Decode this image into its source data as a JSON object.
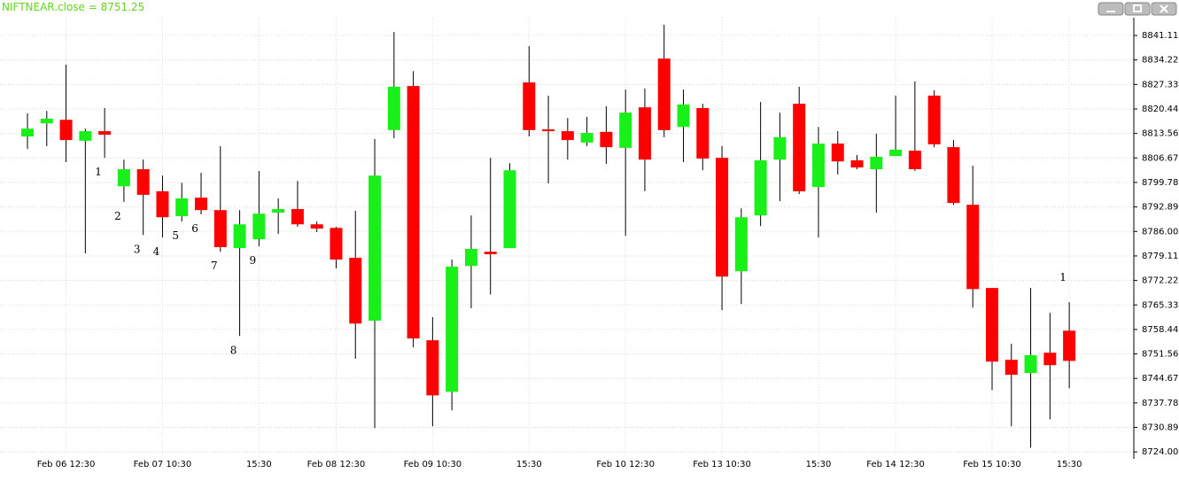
{
  "chart_data": {
    "type": "candlestick",
    "title": "NIFTNEAR.close = 8751.25",
    "categories": [
      null,
      null,
      "Feb 06 12:30",
      null,
      null,
      null,
      null,
      "Feb 07 10:30",
      null,
      null,
      null,
      null,
      "15:30",
      null,
      null,
      null,
      "Feb 08 12:30",
      null,
      null,
      null,
      null,
      "Feb 09 10:30",
      null,
      null,
      null,
      null,
      "15:30",
      null,
      null,
      null,
      null,
      "Feb 10 12:30",
      null,
      null,
      null,
      null,
      "Feb 13 10:30",
      null,
      null,
      null,
      null,
      "15:30",
      null,
      null,
      null,
      "Feb 14 12:30",
      null,
      null,
      null,
      null,
      "Feb 15 10:30",
      null,
      null,
      null,
      "15:30"
    ],
    "open": [
      8812.7,
      8816.4,
      8817.4,
      8811.5,
      8814.2,
      8798.7,
      8803.5,
      8797.3,
      8790.3,
      8795.5,
      8792.0,
      8781.3,
      8783.8,
      8791.3,
      8792.3,
      8788.0,
      8787.0,
      8778.6,
      8760.9,
      8814.5,
      8826.9,
      8755.4,
      8740.9,
      8776.3,
      8780.3,
      8781.3,
      8827.9,
      8814.7,
      8814.2,
      8811.0,
      8814.0,
      8809.5,
      8820.9,
      8834.6,
      8815.4,
      8820.7,
      8806.7,
      8774.8,
      8790.5,
      8806.2,
      8821.9,
      8798.5,
      8810.7,
      8806.0,
      8803.5,
      8807.2,
      8808.7,
      8824.2,
      8809.7,
      8793.5,
      8770.1,
      8749.9,
      8746.2,
      8751.9,
      8758.1
    ],
    "high": [
      8819.2,
      8819.9,
      8832.9,
      8814.9,
      8820.7,
      8806.2,
      8806.2,
      8801.7,
      8799.7,
      8802.5,
      8810.0,
      8792.0,
      8803.0,
      8795.3,
      8800.2,
      8788.8,
      8787.3,
      8791.8,
      8812.0,
      8842.1,
      8831.1,
      8761.9,
      8778.1,
      8790.5,
      8806.7,
      8805.2,
      8838.1,
      8824.2,
      8817.9,
      8818.2,
      8821.2,
      8825.9,
      8826.2,
      8844.1,
      8825.9,
      8821.9,
      8810.0,
      8792.5,
      8822.4,
      8819.4,
      8826.7,
      8815.4,
      8814.2,
      8807.5,
      8813.5,
      8824.2,
      8828.2,
      8825.7,
      8811.7,
      8804.5,
      8770.1,
      8754.4,
      8770.1,
      8763.1,
      8766.1
    ],
    "low": [
      8809.2,
      8810.0,
      8805.5,
      8779.8,
      8806.7,
      8794.3,
      8785.0,
      8784.3,
      8788.8,
      8790.8,
      8780.3,
      8756.6,
      8781.8,
      8785.3,
      8787.3,
      8785.8,
      8775.6,
      8750.2,
      8730.7,
      8812.2,
      8753.4,
      8731.2,
      8735.7,
      8764.4,
      8768.3,
      8781.3,
      8812.7,
      8799.5,
      8806.2,
      8810.0,
      8805.0,
      8784.8,
      8797.3,
      8812.5,
      8805.5,
      8803.2,
      8763.9,
      8765.6,
      8787.5,
      8794.5,
      8796.5,
      8784.3,
      8802.0,
      8803.5,
      8791.3,
      8807.2,
      8803.0,
      8809.7,
      8793.5,
      8764.6,
      8741.4,
      8731.2,
      8725.2,
      8733.2,
      8741.9
    ],
    "close": [
      8814.9,
      8817.7,
      8811.7,
      8814.2,
      8813.2,
      8803.5,
      8796.3,
      8790.0,
      8795.3,
      8792.0,
      8781.6,
      8788.0,
      8791.0,
      8792.3,
      8788.0,
      8786.8,
      8778.1,
      8760.1,
      8801.7,
      8826.7,
      8755.9,
      8739.9,
      8776.1,
      8781.1,
      8779.6,
      8803.2,
      8814.5,
      8814.2,
      8811.7,
      8813.7,
      8809.7,
      8819.4,
      8806.2,
      8814.5,
      8821.7,
      8806.5,
      8773.3,
      8790.0,
      8806.0,
      8812.5,
      8797.3,
      8810.7,
      8805.7,
      8804.0,
      8807.0,
      8809.0,
      8803.5,
      8810.5,
      8794.0,
      8769.8,
      8749.4,
      8745.7,
      8751.2,
      8748.4,
      8749.6
    ],
    "up_color": "#19f019",
    "down_color": "#ff0000",
    "ylim": [
      8722.8,
      8846.1
    ],
    "yticks": [
      8841.11,
      8834.22,
      8827.33,
      8820.44,
      8813.56,
      8806.67,
      8799.78,
      8792.89,
      {
        "value": 8786,
        "label": "8786.00"
      },
      8779.11,
      8772.22,
      8765.33,
      8758.44,
      8751.56,
      8744.67,
      8737.78,
      8730.89,
      {
        "value": 8724,
        "label": "8724.00"
      }
    ],
    "grid": true,
    "annotations": [
      {
        "text": "1",
        "at": 4,
        "side": "below"
      },
      {
        "text": "2",
        "at": 5,
        "side": "below"
      },
      {
        "text": "3",
        "at": 6,
        "side": "below"
      },
      {
        "text": "4",
        "at": 7,
        "side": "below"
      },
      {
        "text": "5",
        "at": 8,
        "side": "below"
      },
      {
        "text": "6",
        "at": 9,
        "side": "below"
      },
      {
        "text": "7",
        "at": 10,
        "side": "below"
      },
      {
        "text": "8",
        "at": 11,
        "side": "below"
      },
      {
        "text": "9",
        "at": 12,
        "side": "below"
      },
      {
        "text": "1",
        "at": 54,
        "side": "above"
      }
    ]
  }
}
